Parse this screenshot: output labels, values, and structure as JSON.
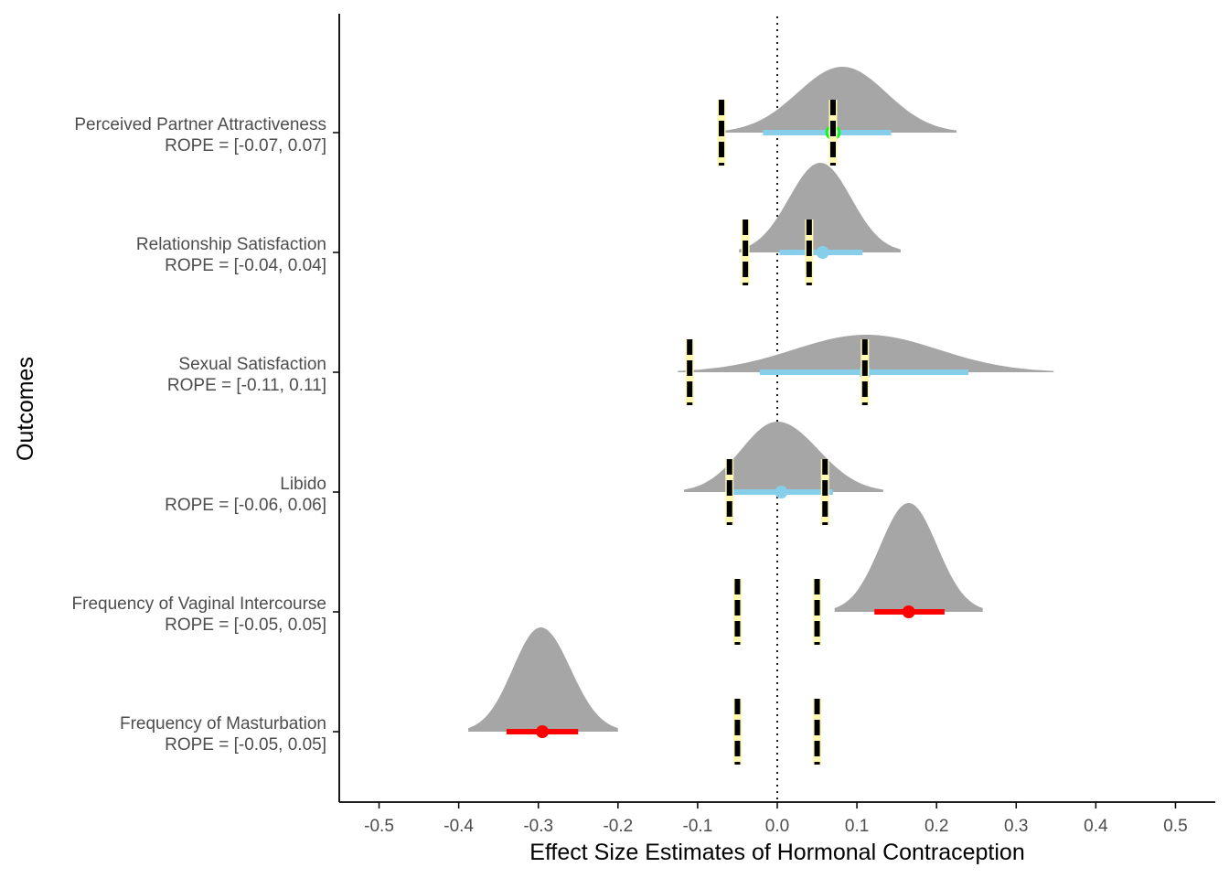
{
  "chart_data": {
    "type": "density-ridgeline",
    "xlabel": "Effect Size Estimates of Hormonal Contraception",
    "ylabel": "Outcomes",
    "xlim": [
      -0.55,
      0.55
    ],
    "xticks": [
      -0.5,
      -0.4,
      -0.3,
      -0.2,
      -0.1,
      0.0,
      0.1,
      0.2,
      0.3,
      0.4,
      0.5
    ],
    "xtick_labels": [
      "-0.5",
      "-0.4",
      "-0.3",
      "-0.2",
      "-0.1",
      "0.0",
      "0.1",
      "0.2",
      "0.3",
      "0.4",
      "0.5"
    ],
    "reference_line": 0,
    "grid": false,
    "outcomes": [
      {
        "name": "Perceived Partner Attractiveness",
        "rope_label": "ROPE = [-0.07, 0.07]",
        "rope": [
          -0.07,
          0.07
        ],
        "estimate": 0.07,
        "interval": [
          -0.018,
          0.143
        ],
        "density_range": [
          -0.065,
          0.225
        ],
        "density_peak": 0.082,
        "interval_color": "#87ceeb",
        "point_color": "#87ceeb",
        "point_outline": "#00ff00"
      },
      {
        "name": "Relationship Satisfaction",
        "rope_label": "ROPE = [-0.04, 0.04]",
        "rope": [
          -0.04,
          0.04
        ],
        "estimate": 0.057,
        "interval": [
          0.003,
          0.107
        ],
        "density_range": [
          -0.048,
          0.155
        ],
        "density_peak": 0.054,
        "interval_color": "#87ceeb",
        "point_color": "#87ceeb",
        "point_outline": ""
      },
      {
        "name": "Sexual Satisfaction",
        "rope_label": "ROPE = [-0.11, 0.11]",
        "rope": [
          -0.11,
          0.11
        ],
        "estimate": 0.11,
        "interval": [
          -0.022,
          0.24
        ],
        "density_range": [
          -0.125,
          0.347
        ],
        "density_peak": 0.112,
        "interval_color": "#87ceeb",
        "point_color": "#87ceeb",
        "point_outline": ""
      },
      {
        "name": "Libido",
        "rope_label": "ROPE = [-0.06, 0.06]",
        "rope": [
          -0.06,
          0.06
        ],
        "estimate": 0.005,
        "interval": [
          -0.06,
          0.07
        ],
        "density_range": [
          -0.117,
          0.133
        ],
        "density_peak": 0.0,
        "interval_color": "#87ceeb",
        "point_color": "#87ceeb",
        "point_outline": ""
      },
      {
        "name": "Frequency of Vaginal Intercourse",
        "rope_label": "ROPE = [-0.05, 0.05]",
        "rope": [
          -0.05,
          0.05
        ],
        "estimate": 0.165,
        "interval": [
          0.122,
          0.21
        ],
        "density_range": [
          0.072,
          0.258
        ],
        "density_peak": 0.165,
        "interval_color": "#ff0000",
        "point_color": "#ff0000",
        "point_outline": ""
      },
      {
        "name": "Frequency of Masturbation",
        "rope_label": "ROPE = [-0.05, 0.05]",
        "rope": [
          -0.05,
          0.05
        ],
        "estimate": -0.295,
        "interval": [
          -0.34,
          -0.25
        ],
        "density_range": [
          -0.388,
          -0.2
        ],
        "density_peak": -0.297,
        "interval_color": "#ff0000",
        "point_color": "#ff0000",
        "point_outline": ""
      }
    ],
    "colors": {
      "density_fill": "#a6a6a6",
      "rope_line": "#000000",
      "rope_line_edge": "#fff8b0",
      "axis": "#000000",
      "reference": "#000000"
    }
  }
}
